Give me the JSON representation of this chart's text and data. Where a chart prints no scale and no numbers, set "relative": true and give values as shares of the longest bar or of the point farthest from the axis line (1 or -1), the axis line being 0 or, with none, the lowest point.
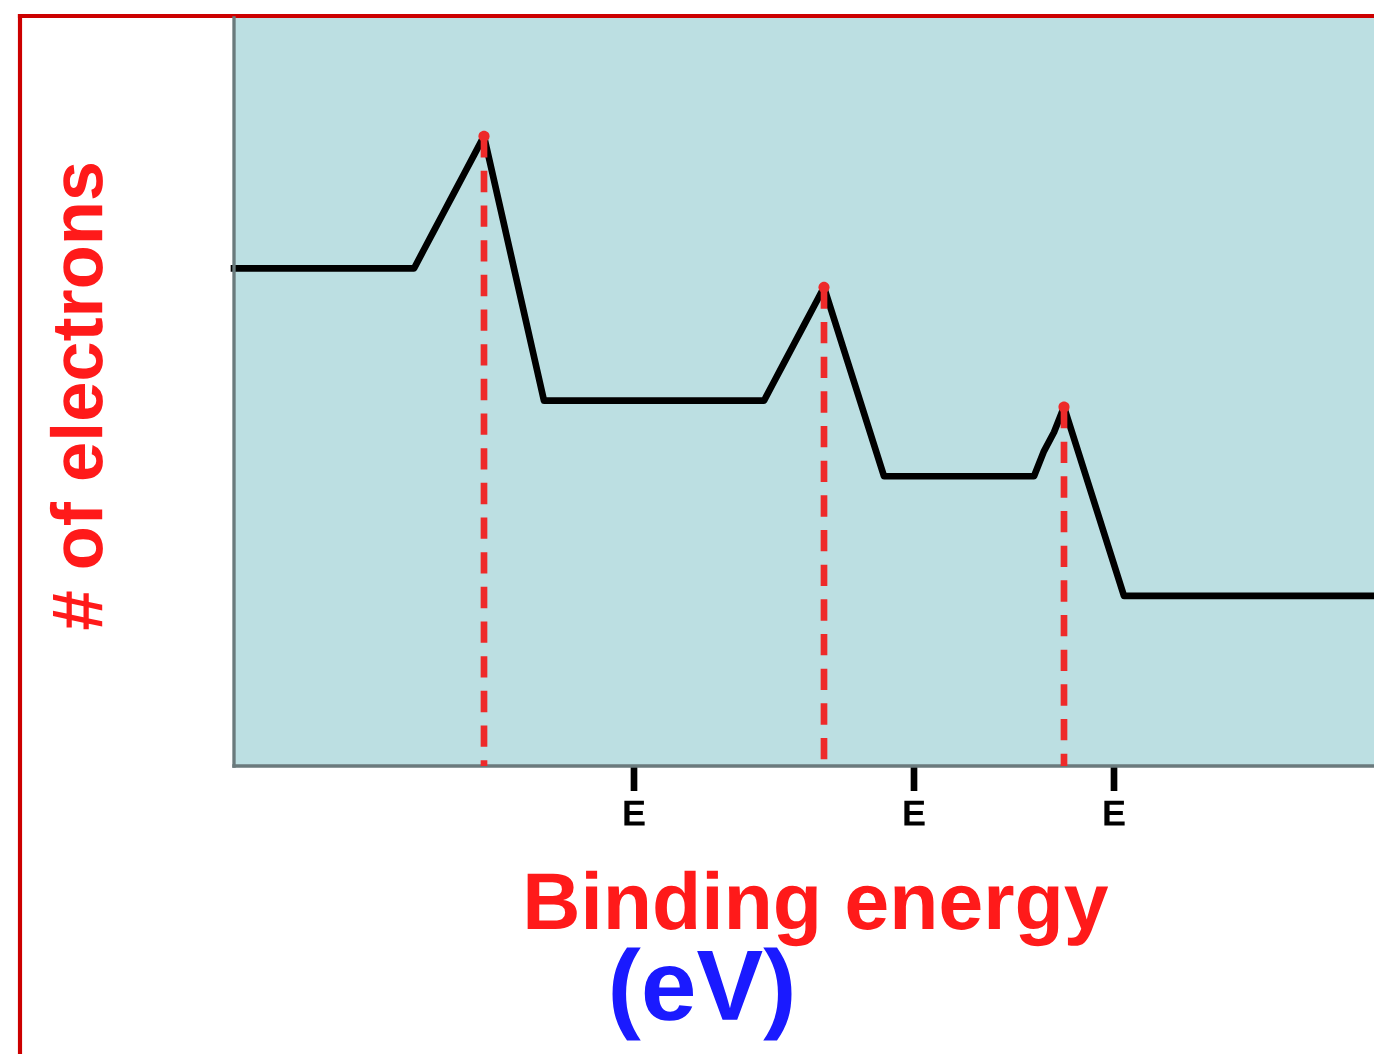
{
  "chart_data": {
    "type": "line",
    "xlabel": "Binding energy",
    "ylabel": "# of electrons",
    "annotations": [
      "(eV)"
    ],
    "relative": true,
    "categories": [
      null,
      null,
      null,
      null,
      null,
      null,
      null,
      null,
      null,
      null,
      null,
      null,
      null,
      null,
      null,
      null,
      null,
      null,
      null,
      null,
      null,
      null,
      null,
      null,
      null,
      null,
      null,
      null,
      null,
      null,
      null,
      null,
      null,
      null,
      null,
      null,
      null,
      null,
      null,
      null,
      "E",
      null,
      null,
      null,
      null,
      null,
      null,
      null,
      null,
      null,
      null,
      null,
      null,
      null,
      null,
      null,
      null,
      null,
      null,
      null,
      null,
      null,
      null,
      null,
      null,
      null,
      null,
      null,
      "E",
      null,
      null,
      null,
      null,
      null,
      null,
      null,
      null,
      null,
      null,
      null,
      null,
      null,
      null,
      null,
      null,
      null,
      null,
      null,
      "E",
      null,
      null,
      null,
      null,
      null,
      null,
      null,
      null,
      null,
      null,
      null,
      null,
      null,
      null,
      null,
      null,
      null,
      null,
      null,
      null,
      null,
      null,
      null,
      null,
      null,
      null
    ],
    "series": [
      {
        "color": "#000000",
        "line_style": "solid",
        "values": [
          0.79,
          0.79,
          0.79,
          0.79,
          0.79,
          0.79,
          0.79,
          0.79,
          0.79,
          0.79,
          0.79,
          0.79,
          0.79,
          0.79,
          0.79,
          0.79,
          0.79,
          0.79,
          0.79,
          0.82,
          0.85,
          0.88,
          0.91,
          0.94,
          0.97,
          1,
          0.93,
          0.86,
          0.79,
          0.72,
          0.65,
          0.58,
          0.58,
          0.58,
          0.58,
          0.58,
          0.58,
          0.58,
          0.58,
          0.58,
          0.58,
          0.58,
          0.58,
          0.58,
          0.58,
          0.58,
          0.58,
          0.58,
          0.58,
          0.58,
          0.58,
          0.58,
          0.58,
          0.58,
          0.61,
          0.64,
          0.67,
          0.7,
          0.73,
          0.76,
          0.71,
          0.66,
          0.61,
          0.56,
          0.51,
          0.46,
          0.46,
          0.46,
          0.46,
          0.46,
          0.46,
          0.46,
          0.46,
          0.46,
          0.46,
          0.46,
          0.46,
          0.46,
          0.46,
          0.46,
          0.46,
          0.5,
          0.53,
          0.57,
          0.52,
          0.47,
          0.42,
          0.37,
          0.32,
          0.27,
          0.27,
          0.27,
          0.27,
          0.27,
          0.27,
          0.27,
          0.27,
          0.27,
          0.27,
          0.27,
          0.27,
          0.27,
          0.27,
          0.27,
          0.27,
          0.27,
          0.27,
          0.27,
          0.27,
          0.27,
          0.27,
          0.27,
          0.27,
          0.27,
          0.27
        ]
      },
      {
        "type": "lollipop",
        "color": "#ee2a2a",
        "line_style": "dashed",
        "marker": "circle",
        "values": [
          null,
          null,
          null,
          null,
          null,
          null,
          null,
          null,
          null,
          null,
          null,
          null,
          null,
          null,
          null,
          null,
          null,
          null,
          null,
          null,
          null,
          null,
          null,
          null,
          null,
          1,
          null,
          null,
          null,
          null,
          null,
          null,
          null,
          null,
          null,
          null,
          null,
          null,
          null,
          null,
          null,
          null,
          null,
          null,
          null,
          null,
          null,
          null,
          null,
          null,
          null,
          null,
          null,
          null,
          null,
          null,
          null,
          null,
          null,
          0.76,
          null,
          null,
          null,
          null,
          null,
          null,
          null,
          null,
          null,
          null,
          null,
          null,
          null,
          null,
          null,
          null,
          null,
          null,
          null,
          null,
          null,
          null,
          null,
          0.57,
          null,
          null,
          null,
          null,
          null,
          null,
          null,
          null,
          null,
          null,
          null,
          null,
          null,
          null,
          null,
          null,
          null,
          null,
          null,
          null,
          null,
          null,
          null,
          null,
          null,
          null,
          null,
          null,
          null,
          null,
          null
        ]
      }
    ]
  }
}
